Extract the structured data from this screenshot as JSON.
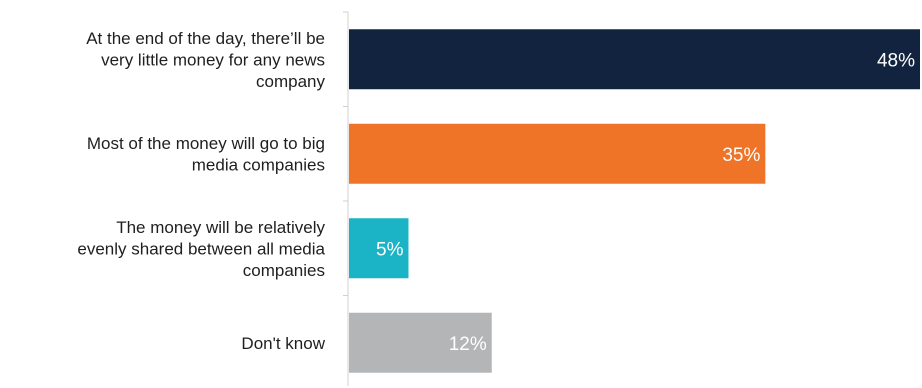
{
  "chart_data": {
    "type": "bar",
    "orientation": "horizontal",
    "categories": [
      "At the end of the day, there’ll be very little money for any news company",
      "Most of the money will go to big media companies",
      "The money will be relatively evenly shared between all media companies",
      "Don't know"
    ],
    "category_lines": [
      [
        "At the end of the day, there’ll be",
        "very little money for any news",
        "company"
      ],
      [
        "Most of the money will go to big",
        "media companies"
      ],
      [
        "The money will be relatively",
        "evenly shared between all media",
        "companies"
      ],
      [
        "Don't know"
      ]
    ],
    "values": [
      48,
      35,
      5,
      12
    ],
    "value_labels": [
      "48%",
      "35%",
      "5%",
      "12%"
    ],
    "colors": [
      "#12233f",
      "#f07428",
      "#1ab4c6",
      "#b3b5b7"
    ],
    "xlim": [
      0,
      48
    ],
    "grid": false,
    "legend": "none"
  }
}
